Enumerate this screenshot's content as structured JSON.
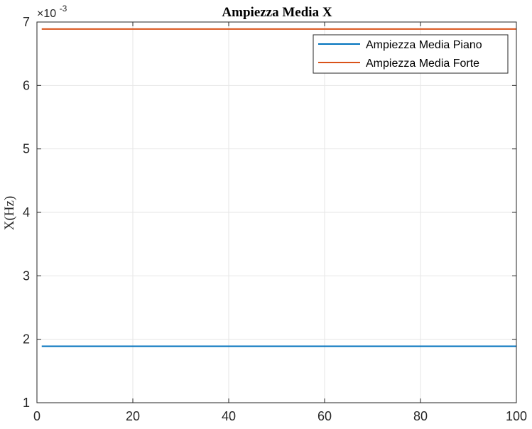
{
  "chart_data": {
    "type": "line",
    "title": "Ampiezza Media X",
    "xlabel": "",
    "ylabel": "X(Hz)",
    "xlim": [
      0,
      100
    ],
    "ylim": [
      0.001,
      0.007
    ],
    "x_ticks": [
      0,
      20,
      40,
      60,
      80,
      100
    ],
    "x_tick_labels": [
      "0",
      "20",
      "40",
      "60",
      "80",
      "100"
    ],
    "y_ticks": [
      0.001,
      0.002,
      0.003,
      0.004,
      0.005,
      0.006,
      0.007
    ],
    "y_tick_labels": [
      "1",
      "2",
      "3",
      "4",
      "5",
      "6",
      "7"
    ],
    "y_exponent_base": "×10",
    "y_exponent_power": "-3",
    "grid": true,
    "legend_position": "top-right",
    "series": [
      {
        "name": "Ampiezza Media Piano",
        "color": "#0072BD",
        "x": [
          1,
          100
        ],
        "y": [
          0.00189,
          0.00189
        ]
      },
      {
        "name": "Ampiezza Media Forte",
        "color": "#D95319",
        "x": [
          1,
          100
        ],
        "y": [
          0.00689,
          0.00689
        ]
      }
    ]
  }
}
